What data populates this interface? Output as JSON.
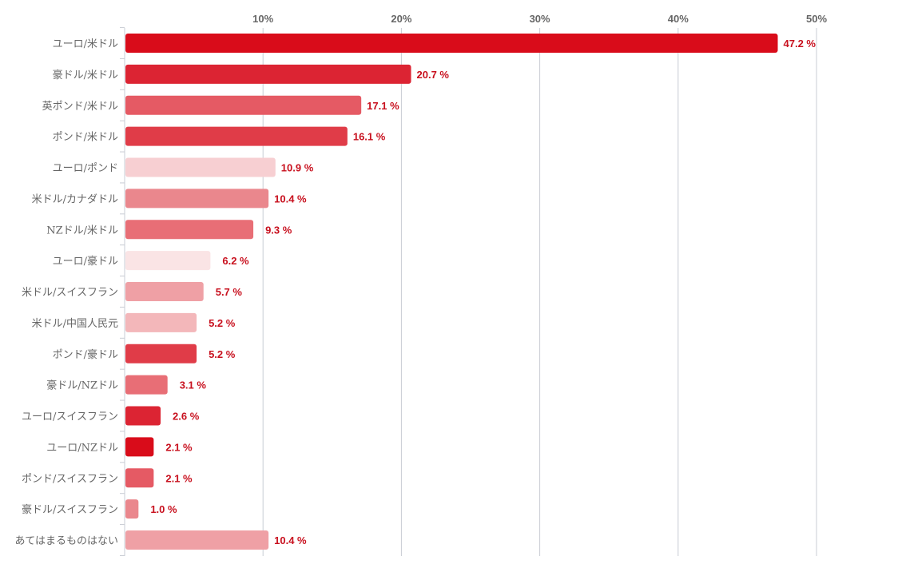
{
  "chart_data": {
    "type": "bar",
    "orientation": "horizontal",
    "xlim": [
      0,
      50
    ],
    "x_ticks": [
      "10%",
      "20%",
      "30%",
      "40%",
      "50%"
    ],
    "x_tick_values": [
      10,
      20,
      30,
      40,
      50
    ],
    "grid": true,
    "value_suffix": " %",
    "categories": [
      "ユーロ/米ドル",
      "豪ドル/米ドル",
      "英ポンド/米ドル",
      "ポンド/米ドル",
      "ユーロ/ポンド",
      "米ドル/カナダドル",
      "NZドル/米ドル",
      "ユーロ/豪ドル",
      "米ドル/スイスフラン",
      "米ドル/中国人民元",
      "ポンド/豪ドル",
      "豪ドル/NZドル",
      "ユーロ/スイスフラン",
      "ユーロ/NZドル",
      "ポンド/スイスフラン",
      "豪ドル/スイスフラン",
      "あてはまるものはない"
    ],
    "values": [
      47.2,
      20.7,
      17.1,
      16.1,
      10.9,
      10.4,
      9.3,
      6.2,
      5.7,
      5.2,
      5.2,
      3.1,
      2.6,
      2.1,
      2.1,
      1.0,
      10.4
    ],
    "value_labels": [
      "47.2 %",
      "20.7 %",
      "17.1 %",
      "16.1 %",
      "10.9 %",
      "10.4 %",
      "9.3 %",
      "6.2 %",
      "5.7 %",
      "5.2 %",
      "5.2 %",
      "3.1 %",
      "2.6 %",
      "2.1 %",
      "2.1 %",
      "1.0 %",
      "10.4 %"
    ],
    "colors": [
      "#d90c1a",
      "#dc2433",
      "#e55a64",
      "#e03c48",
      "#f7cfd2",
      "#ea878d",
      "#e86e76",
      "#fae4e5",
      "#efa0a5",
      "#f3b7ba",
      "#e03c48",
      "#e86e76",
      "#dc2433",
      "#d90c1a",
      "#e55a64",
      "#ea878d",
      "#efa0a5"
    ],
    "value_label_color": "#c8101e"
  }
}
